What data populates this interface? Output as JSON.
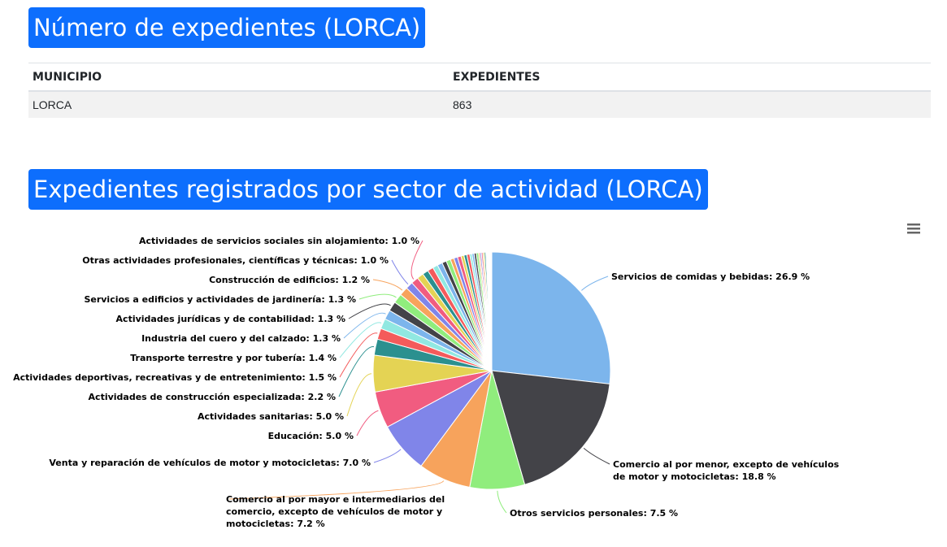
{
  "section1": {
    "title": "Número de expedientes (LORCA)",
    "table": {
      "headers": [
        "MUNICIPIO",
        "EXPEDIENTES"
      ],
      "rows": [
        [
          "LORCA",
          "863"
        ]
      ]
    }
  },
  "section2": {
    "title": "Expedientes registrados por sector de actividad (LORCA)",
    "menu_icon": "hamburger-menu-icon"
  },
  "chart_data": {
    "type": "pie",
    "unit": "%",
    "slices": [
      {
        "label": "Servicios de comidas y bebidas",
        "value": 26.9,
        "color": "#7cb5ec",
        "labeled": true
      },
      {
        "label": "Comercio al por menor, excepto de vehículos de motor y motocicletas",
        "value": 18.8,
        "color": "#434348",
        "labeled": true
      },
      {
        "label": "Otros servicios personales",
        "value": 7.5,
        "color": "#90ed7d",
        "labeled": true
      },
      {
        "label": "Comercio al por mayor e intermediarios del comercio, excepto de vehículos de motor y motocicletas",
        "value": 7.2,
        "color": "#f7a35c",
        "labeled": true
      },
      {
        "label": "Venta y reparación de vehículos de motor y motocicletas",
        "value": 7.0,
        "color": "#8085e9",
        "labeled": true
      },
      {
        "label": "Educación",
        "value": 5.0,
        "color": "#f15c80",
        "labeled": true
      },
      {
        "label": "Actividades sanitarias",
        "value": 5.0,
        "color": "#e4d354",
        "labeled": true
      },
      {
        "label": "Actividades de construcción especializada",
        "value": 2.2,
        "color": "#2b908f",
        "labeled": true
      },
      {
        "label": "Actividades deportivas, recreativas y de entretenimiento",
        "value": 1.5,
        "color": "#f45b5b",
        "labeled": true
      },
      {
        "label": "Transporte terrestre y por tubería",
        "value": 1.4,
        "color": "#91e8e1",
        "labeled": true
      },
      {
        "label": "Industria del cuero y del calzado",
        "value": 1.3,
        "color": "#7cb5ec",
        "labeled": true
      },
      {
        "label": "Actividades jurídicas y de contabilidad",
        "value": 1.3,
        "color": "#434348",
        "labeled": true
      },
      {
        "label": "Servicios a edificios y actividades de jardinería",
        "value": 1.3,
        "color": "#90ed7d",
        "labeled": true
      },
      {
        "label": "Construcción de edificios",
        "value": 1.2,
        "color": "#f7a35c",
        "labeled": true
      },
      {
        "label": "Otras actividades profesionales, científicas y técnicas",
        "value": 1.0,
        "color": "#8085e9",
        "labeled": true
      },
      {
        "label": "Actividades de servicios sociales sin alojamiento",
        "value": 1.0,
        "color": "#f15c80",
        "labeled": true
      },
      {
        "label": "",
        "value": 0.9,
        "color": "#e4d354",
        "labeled": false
      },
      {
        "label": "",
        "value": 0.8,
        "color": "#2b908f",
        "labeled": false
      },
      {
        "label": "",
        "value": 0.8,
        "color": "#f45b5b",
        "labeled": false
      },
      {
        "label": "",
        "value": 0.7,
        "color": "#91e8e1",
        "labeled": false
      },
      {
        "label": "",
        "value": 0.7,
        "color": "#7cb5ec",
        "labeled": false
      },
      {
        "label": "",
        "value": 0.6,
        "color": "#434348",
        "labeled": false
      },
      {
        "label": "",
        "value": 0.6,
        "color": "#90ed7d",
        "labeled": false
      },
      {
        "label": "",
        "value": 0.5,
        "color": "#f7a35c",
        "labeled": false
      },
      {
        "label": "",
        "value": 0.5,
        "color": "#8085e9",
        "labeled": false
      },
      {
        "label": "",
        "value": 0.5,
        "color": "#f15c80",
        "labeled": false
      },
      {
        "label": "",
        "value": 0.4,
        "color": "#e4d354",
        "labeled": false
      },
      {
        "label": "",
        "value": 0.4,
        "color": "#2b908f",
        "labeled": false
      },
      {
        "label": "",
        "value": 0.4,
        "color": "#f45b5b",
        "labeled": false
      },
      {
        "label": "",
        "value": 0.3,
        "color": "#91e8e1",
        "labeled": false
      },
      {
        "label": "",
        "value": 0.3,
        "color": "#7cb5ec",
        "labeled": false
      },
      {
        "label": "",
        "value": 0.3,
        "color": "#434348",
        "labeled": false
      },
      {
        "label": "",
        "value": 0.3,
        "color": "#90ed7d",
        "labeled": false
      },
      {
        "label": "",
        "value": 0.2,
        "color": "#f7a35c",
        "labeled": false
      },
      {
        "label": "",
        "value": 0.2,
        "color": "#8085e9",
        "labeled": false
      },
      {
        "label": "",
        "value": 0.2,
        "color": "#f15c80",
        "labeled": false
      },
      {
        "label": "",
        "value": 0.2,
        "color": "#e4d354",
        "labeled": false
      },
      {
        "label": "",
        "value": 0.2,
        "color": "#2b908f",
        "labeled": false
      },
      {
        "label": "",
        "value": 0.1,
        "color": "#f45b5b",
        "labeled": false
      },
      {
        "label": "",
        "value": 0.1,
        "color": "#91e8e1",
        "labeled": false
      },
      {
        "label": "",
        "value": 0.1,
        "color": "#7cb5ec",
        "labeled": false
      },
      {
        "label": "",
        "value": 0.1,
        "color": "#434348",
        "labeled": false
      },
      {
        "label": "",
        "value": 0.1,
        "color": "#90ed7d",
        "labeled": false
      },
      {
        "label": "",
        "value": 0.1,
        "color": "#f7a35c",
        "labeled": false
      },
      {
        "label": "",
        "value": 0.1,
        "color": "#8085e9",
        "labeled": false
      },
      {
        "label": "",
        "value": 0.1,
        "color": "#f15c80",
        "labeled": false
      }
    ]
  }
}
